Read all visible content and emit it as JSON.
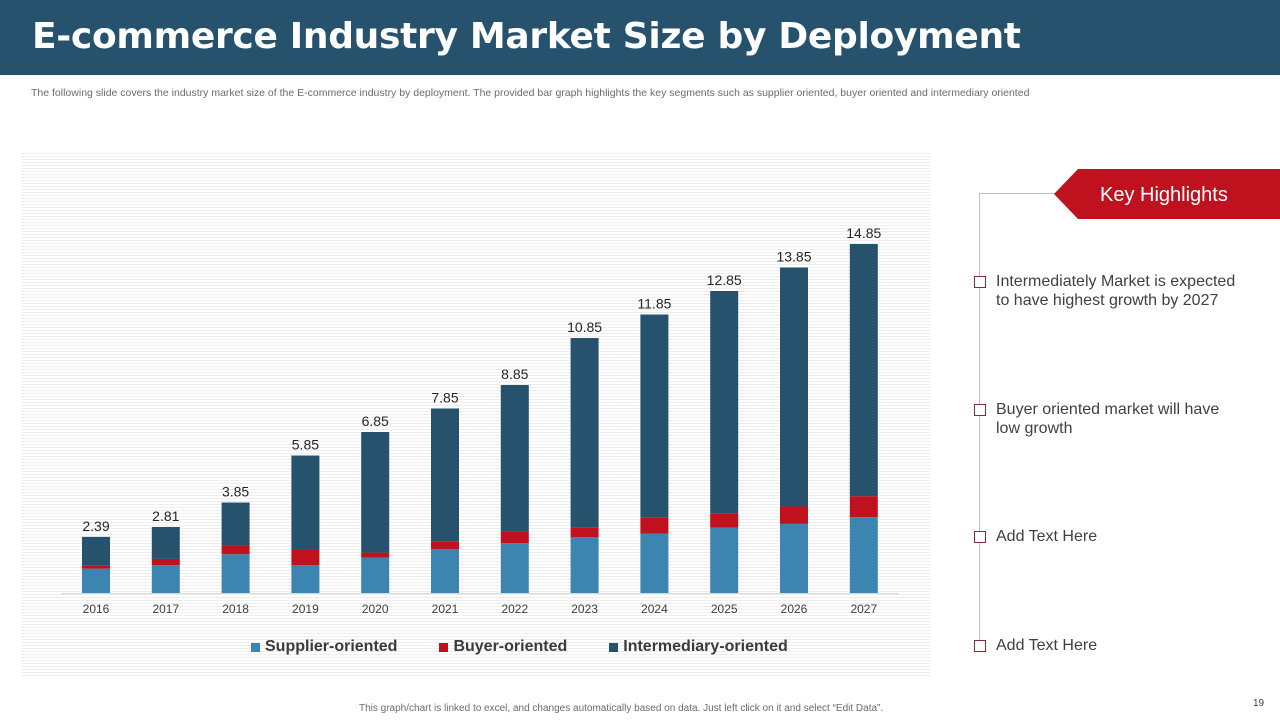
{
  "header": {
    "title": "E-commerce Industry Market Size by Deployment"
  },
  "subtitle": "The following slide covers the industry market size of the E-commerce industry by  deployment. The provided bar graph highlights the key segments such as supplier oriented, buyer oriented and intermediary oriented",
  "colors": {
    "supplier": "#3d85b1",
    "buyer": "#c0111f",
    "intermediary": "#26526e",
    "header": "#26526e",
    "accent": "#c0111f"
  },
  "chart_data": {
    "type": "bar",
    "stacked": true,
    "title": "",
    "xlabel": "",
    "ylabel": "",
    "ylim": [
      0,
      16
    ],
    "grid": false,
    "legend_position": "bottom",
    "categories": [
      "2016",
      "2017",
      "2018",
      "2019",
      "2020",
      "2021",
      "2022",
      "2023",
      "2024",
      "2025",
      "2026",
      "2027"
    ],
    "series": [
      {
        "name": "Supplier-oriented",
        "color": "#3d85b1",
        "values": [
          1.04,
          1.19,
          1.65,
          1.19,
          1.5,
          1.86,
          2.12,
          2.38,
          2.53,
          2.78,
          2.94,
          3.23
        ]
      },
      {
        "name": "Buyer-oriented",
        "color": "#c0111f",
        "values": [
          0.12,
          0.26,
          0.39,
          0.68,
          0.22,
          0.34,
          0.5,
          0.4,
          0.69,
          0.61,
          0.74,
          0.89
        ]
      },
      {
        "name": "Intermediary-oriented",
        "color": "#26526e",
        "values": [
          1.23,
          1.36,
          1.81,
          3.98,
          5.13,
          5.65,
          6.23,
          8.07,
          8.63,
          9.46,
          10.17,
          10.73
        ]
      }
    ],
    "totals": [
      2.39,
      2.81,
      3.85,
      5.85,
      6.85,
      7.85,
      8.85,
      10.85,
      11.85,
      12.85,
      13.85,
      14.85
    ],
    "total_labels": [
      "2.39",
      "2.81",
      "3.85",
      "5.85",
      "6.85",
      "7.85",
      "8.85",
      "10.85",
      "11.85",
      "12.85",
      "13.85",
      "14.85"
    ]
  },
  "legend": [
    {
      "label": "Supplier-oriented",
      "color": "#3d85b1"
    },
    {
      "label": "Buyer-oriented",
      "color": "#c0111f"
    },
    {
      "label": "Intermediary-oriented",
      "color": "#26526e"
    }
  ],
  "key_highlights": {
    "title": "Key Highlights",
    "items": [
      "Intermediately  Market is expected to have highest growth by 2027",
      "Buyer oriented market will have low growth",
      "Add Text Here",
      "Add Text Here"
    ]
  },
  "footer_note": "This graph/chart is linked to excel, and changes automatically based on data. Just left click on it and select “Edit Data”.",
  "page_number": "19"
}
